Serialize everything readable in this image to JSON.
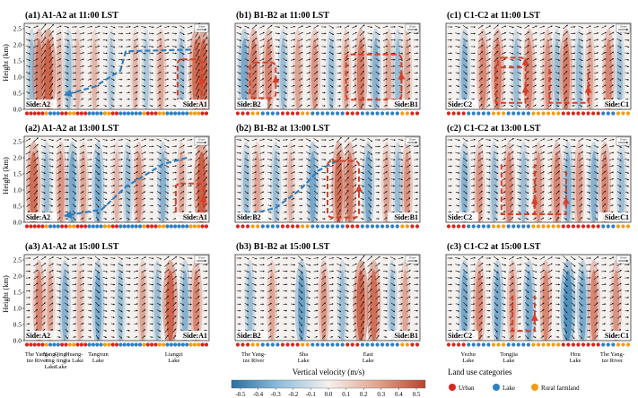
{
  "figure": {
    "y_axis_label": "Height (km)",
    "colorbar_title": "Vertical velocity (m/s)",
    "colorbar_ticks": [
      "-0.5",
      "-0.4",
      "-0.3",
      "-0.2",
      "-0.1",
      "0.0",
      "0.1",
      "0.2",
      "0.3",
      "0.4",
      "0.5"
    ],
    "legend_title": "Land use categories",
    "legend_items": [
      {
        "label": "Urban",
        "color": "#d7261e"
      },
      {
        "label": "Lake",
        "color": "#2f7fc1"
      },
      {
        "label": "Rural farmland",
        "color": "#f39c12"
      }
    ],
    "colors": {
      "positive": "#c8553a",
      "negative": "#3f86b8",
      "flow_arrow": "#111111",
      "blue_dash": "#2f7fc1",
      "red_dash": "#d6402a"
    }
  },
  "chart_data": [
    {
      "type": "heatmap",
      "title": "(a1) A1-A2 at 11:00 LST",
      "ylim": [
        0,
        2.5
      ],
      "yticks": [
        "0.0",
        "0.5",
        "1.0",
        "1.5",
        "2.0",
        "2.5"
      ],
      "left_side_label": "Side:A2",
      "right_side_label": "Side:A1",
      "ref_vector": "10 m/s",
      "x_categories": [],
      "surface": [
        "u",
        "u",
        "u",
        "u",
        "u",
        "f",
        "l",
        "l",
        "l",
        "u",
        "u",
        "f",
        "f",
        "u",
        "u",
        "u",
        "l",
        "l",
        "l",
        "l",
        "f",
        "f",
        "u",
        "u",
        "l",
        "l",
        "l",
        "l",
        "l",
        "l",
        "f",
        "u",
        "u",
        "u",
        "f",
        "f",
        "l",
        "l",
        "l",
        "l",
        "l",
        "l",
        "f",
        "f",
        "f",
        "u",
        "u"
      ],
      "updrafts": [
        {
          "x": 0.08,
          "w": 0.35
        },
        {
          "x": 0.13,
          "w": 0.45
        },
        {
          "x": 0.19,
          "w": 0.15
        },
        {
          "x": 0.29,
          "w": 0.15
        },
        {
          "x": 0.38,
          "w": 0.15
        },
        {
          "x": 0.6,
          "w": 0.15
        },
        {
          "x": 0.74,
          "w": 0.2
        },
        {
          "x": 0.93,
          "w": 0.4
        },
        {
          "x": 0.97,
          "w": 0.45
        }
      ],
      "downdrafts": [
        {
          "x": 0.04,
          "w": -0.2
        },
        {
          "x": 0.24,
          "w": -0.2
        },
        {
          "x": 0.47,
          "w": -0.15
        },
        {
          "x": 0.66,
          "w": -0.15
        },
        {
          "x": 0.85,
          "w": -0.2
        }
      ],
      "circulations": [
        {
          "color": "blue",
          "path": [
            [
              0.9,
              1.85
            ],
            [
              0.55,
              1.8
            ],
            [
              0.52,
              1.2
            ],
            [
              0.38,
              0.7
            ],
            [
              0.22,
              0.45
            ]
          ]
        },
        {
          "color": "red",
          "loop": [
            0.83,
            1.55,
            0.96,
            0.2
          ]
        }
      ]
    },
    {
      "type": "heatmap",
      "title": "(b1) B1-B2 at 11:00 LST",
      "ylim": [
        0,
        2.5
      ],
      "yticks": [],
      "left_side_label": "Side:B2",
      "right_side_label": "Side:B1",
      "ref_vector": "10 m/s",
      "x_categories": [],
      "surface": [
        "u",
        "u",
        "u",
        "f",
        "f",
        "l",
        "l",
        "l",
        "l",
        "u",
        "u",
        "u",
        "u",
        "f",
        "f",
        "l",
        "l",
        "l",
        "l",
        "l",
        "l",
        "l",
        "u",
        "u",
        "u",
        "l",
        "l",
        "l",
        "l",
        "l",
        "l",
        "l",
        "l",
        "f",
        "f",
        "u",
        "u"
      ],
      "updrafts": [
        {
          "x": 0.1,
          "w": 0.35
        },
        {
          "x": 0.18,
          "w": 0.3
        },
        {
          "x": 0.34,
          "w": 0.2
        },
        {
          "x": 0.43,
          "w": 0.25
        },
        {
          "x": 0.6,
          "w": 0.2
        },
        {
          "x": 0.68,
          "w": 0.35
        },
        {
          "x": 0.83,
          "w": 0.2
        },
        {
          "x": 0.93,
          "w": 0.2
        }
      ],
      "downdrafts": [
        {
          "x": 0.05,
          "w": -0.3
        },
        {
          "x": 0.26,
          "w": -0.2
        },
        {
          "x": 0.52,
          "w": -0.2
        },
        {
          "x": 0.76,
          "w": -0.25
        },
        {
          "x": 0.88,
          "w": -0.2
        }
      ],
      "circulations": [
        {
          "color": "red",
          "loop": [
            0.08,
            1.45,
            0.22,
            0.35
          ]
        },
        {
          "color": "red",
          "loop": [
            0.6,
            1.7,
            0.9,
            0.3
          ]
        }
      ]
    },
    {
      "type": "heatmap",
      "title": "(c1) C1-C2 at 11:00 LST",
      "ylim": [
        0,
        2.5
      ],
      "yticks": [],
      "left_side_label": "Side:C2",
      "right_side_label": "Side:C1",
      "ref_vector": "10 m/s",
      "x_categories": [],
      "surface": [
        "u",
        "u",
        "u",
        "u",
        "l",
        "l",
        "l",
        "l",
        "l",
        "f",
        "f",
        "f",
        "l",
        "l",
        "l",
        "l",
        "l",
        "f",
        "f",
        "f",
        "f",
        "f",
        "f",
        "u",
        "u",
        "u",
        "u",
        "u",
        "u",
        "u",
        "u",
        "l",
        "l",
        "l",
        "f",
        "f",
        "f"
      ],
      "updrafts": [
        {
          "x": 0.2,
          "w": 0.3
        },
        {
          "x": 0.28,
          "w": 0.35
        },
        {
          "x": 0.45,
          "w": 0.3
        },
        {
          "x": 0.55,
          "w": 0.25
        },
        {
          "x": 0.65,
          "w": 0.35
        },
        {
          "x": 0.78,
          "w": 0.2
        },
        {
          "x": 0.88,
          "w": 0.3
        }
      ],
      "downdrafts": [
        {
          "x": 0.1,
          "w": -0.25
        },
        {
          "x": 0.38,
          "w": -0.2
        },
        {
          "x": 0.6,
          "w": -0.2
        },
        {
          "x": 0.72,
          "w": -0.2
        },
        {
          "x": 0.94,
          "w": -0.2
        }
      ],
      "circulations": [
        {
          "color": "red",
          "u": [
            0.27,
            0.43,
            1.3,
            0.2
          ]
        },
        {
          "color": "red",
          "u": [
            0.56,
            0.77,
            1.25,
            0.2
          ]
        },
        {
          "color": "red",
          "loop": [
            0.28,
            1.6,
            0.43,
            1.3
          ]
        }
      ]
    },
    {
      "type": "heatmap",
      "title": "(a2) A1-A2 at 13:00 LST",
      "ylim": [
        0,
        2.5
      ],
      "yticks": [
        "0.0",
        "0.5",
        "1.0",
        "1.5",
        "2.0",
        "2.5"
      ],
      "left_side_label": "Side:A2",
      "right_side_label": "Side:A1",
      "ref_vector": "10 m/s",
      "x_categories": [],
      "surface": [
        "u",
        "u",
        "u",
        "u",
        "u",
        "f",
        "l",
        "l",
        "l",
        "u",
        "u",
        "f",
        "f",
        "u",
        "u",
        "u",
        "l",
        "l",
        "l",
        "l",
        "f",
        "f",
        "u",
        "u",
        "l",
        "l",
        "l",
        "l",
        "l",
        "l",
        "f",
        "u",
        "u",
        "u",
        "f",
        "f",
        "l",
        "l",
        "l",
        "l",
        "l",
        "l",
        "f",
        "f",
        "f",
        "u",
        "u"
      ],
      "updrafts": [
        {
          "x": 0.05,
          "w": 0.4
        },
        {
          "x": 0.2,
          "w": 0.25
        },
        {
          "x": 0.32,
          "w": 0.2
        },
        {
          "x": 0.5,
          "w": 0.15
        },
        {
          "x": 0.62,
          "w": 0.25
        },
        {
          "x": 0.85,
          "w": 0.2
        },
        {
          "x": 0.96,
          "w": 0.5
        }
      ],
      "downdrafts": [
        {
          "x": 0.12,
          "w": -0.2
        },
        {
          "x": 0.26,
          "w": -0.3
        },
        {
          "x": 0.4,
          "w": -0.3
        },
        {
          "x": 0.56,
          "w": -0.2
        },
        {
          "x": 0.75,
          "w": -0.25
        }
      ],
      "circulations": [
        {
          "color": "blue",
          "path": [
            [
              0.88,
              2.0
            ],
            [
              0.75,
              1.8
            ],
            [
              0.55,
              1.1
            ],
            [
              0.42,
              0.4
            ],
            [
              0.22,
              0.2
            ]
          ]
        },
        {
          "color": "red",
          "loop": [
            0.82,
            1.2,
            0.97,
            0.2
          ]
        }
      ]
    },
    {
      "type": "heatmap",
      "title": "(b2) B1-B2 at 13:00 LST",
      "ylim": [
        0,
        2.5
      ],
      "yticks": [],
      "left_side_label": "Side:B2",
      "right_side_label": "Side:B1",
      "ref_vector": "10 m/s",
      "x_categories": [],
      "surface": [
        "u",
        "u",
        "u",
        "f",
        "f",
        "l",
        "l",
        "l",
        "l",
        "u",
        "u",
        "u",
        "u",
        "f",
        "f",
        "l",
        "l",
        "l",
        "l",
        "l",
        "l",
        "l",
        "u",
        "u",
        "u",
        "l",
        "l",
        "l",
        "l",
        "l",
        "l",
        "l",
        "l",
        "f",
        "f",
        "u",
        "u"
      ],
      "updrafts": [
        {
          "x": 0.12,
          "w": 0.2
        },
        {
          "x": 0.3,
          "w": 0.15
        },
        {
          "x": 0.56,
          "w": 0.4
        },
        {
          "x": 0.62,
          "w": 0.35
        },
        {
          "x": 0.82,
          "w": 0.2
        },
        {
          "x": 0.93,
          "w": 0.25
        }
      ],
      "downdrafts": [
        {
          "x": 0.06,
          "w": -0.2
        },
        {
          "x": 0.22,
          "w": -0.2
        },
        {
          "x": 0.42,
          "w": -0.3
        },
        {
          "x": 0.72,
          "w": -0.3
        },
        {
          "x": 0.88,
          "w": -0.2
        }
      ],
      "circulations": [
        {
          "color": "blue",
          "path": [
            [
              0.55,
              1.9
            ],
            [
              0.45,
              1.6
            ],
            [
              0.35,
              1.0
            ],
            [
              0.22,
              0.45
            ],
            [
              0.05,
              0.2
            ]
          ]
        },
        {
          "color": "red",
          "loop": [
            0.5,
            1.9,
            0.67,
            0.15
          ]
        }
      ]
    },
    {
      "type": "heatmap",
      "title": "(c2) C1-C2 at 13:00 LST",
      "ylim": [
        0,
        2.5
      ],
      "yticks": [],
      "left_side_label": "Side:C2",
      "right_side_label": "Side:C1",
      "ref_vector": "10 m/s",
      "x_categories": [],
      "surface": [
        "u",
        "u",
        "u",
        "u",
        "l",
        "l",
        "l",
        "l",
        "l",
        "f",
        "f",
        "f",
        "l",
        "l",
        "l",
        "l",
        "l",
        "f",
        "f",
        "f",
        "f",
        "f",
        "f",
        "u",
        "u",
        "u",
        "u",
        "u",
        "u",
        "u",
        "u",
        "l",
        "l",
        "l",
        "f",
        "f",
        "f"
      ],
      "updrafts": [
        {
          "x": 0.18,
          "w": 0.25
        },
        {
          "x": 0.34,
          "w": 0.3
        },
        {
          "x": 0.5,
          "w": 0.25
        },
        {
          "x": 0.6,
          "w": 0.3
        },
        {
          "x": 0.72,
          "w": 0.25
        },
        {
          "x": 0.86,
          "w": 0.3
        }
      ],
      "downdrafts": [
        {
          "x": 0.1,
          "w": -0.25
        },
        {
          "x": 0.26,
          "w": -0.2
        },
        {
          "x": 0.42,
          "w": -0.2
        },
        {
          "x": 0.66,
          "w": -0.25
        },
        {
          "x": 0.8,
          "w": -0.25
        },
        {
          "x": 0.95,
          "w": -0.2
        }
      ],
      "circulations": [
        {
          "color": "red",
          "u": [
            0.3,
            0.48,
            1.8,
            0.25
          ]
        },
        {
          "color": "red",
          "u": [
            0.48,
            0.65,
            1.6,
            0.25
          ]
        }
      ]
    },
    {
      "type": "heatmap",
      "title": "(a3) A1-A2 at 15:00 LST",
      "ylim": [
        0,
        2.5
      ],
      "yticks": [
        "0.0",
        "0.5",
        "1.0",
        "1.5",
        "2.0",
        "2.5"
      ],
      "left_side_label": "Side:A2",
      "right_side_label": "Side:A1",
      "ref_vector": "10 m/s",
      "x_categories": [
        {
          "label": "The Yang-\ntze River",
          "x": 0.07
        },
        {
          "label": "Yang-\nting\nLake",
          "x": 0.14
        },
        {
          "label": "Qing-\nting\nLake",
          "x": 0.2
        },
        {
          "label": "Huang-\njia Lake",
          "x": 0.27
        },
        {
          "label": "Tangxun\nLake",
          "x": 0.4
        },
        {
          "label": "Liangzi\nLake",
          "x": 0.81
        }
      ],
      "surface": [
        "u",
        "u",
        "u",
        "u",
        "u",
        "f",
        "l",
        "l",
        "l",
        "u",
        "u",
        "f",
        "f",
        "u",
        "u",
        "u",
        "l",
        "l",
        "l",
        "l",
        "f",
        "f",
        "u",
        "u",
        "l",
        "l",
        "l",
        "l",
        "l",
        "l",
        "f",
        "u",
        "u",
        "u",
        "f",
        "f",
        "l",
        "l",
        "l",
        "l",
        "l",
        "l",
        "f",
        "f",
        "f",
        "u",
        "u"
      ],
      "updrafts": [
        {
          "x": 0.08,
          "w": 0.3
        },
        {
          "x": 0.14,
          "w": 0.2
        },
        {
          "x": 0.3,
          "w": 0.15
        },
        {
          "x": 0.64,
          "w": 0.2
        },
        {
          "x": 0.79,
          "w": 0.45
        },
        {
          "x": 0.93,
          "w": 0.3
        }
      ],
      "downdrafts": [
        {
          "x": 0.22,
          "w": -0.25
        },
        {
          "x": 0.4,
          "w": -0.3
        },
        {
          "x": 0.52,
          "w": -0.2
        },
        {
          "x": 0.72,
          "w": -0.2
        },
        {
          "x": 0.87,
          "w": -0.25
        }
      ],
      "circulations": []
    },
    {
      "type": "heatmap",
      "title": "(b3) B1-B2 at 15:00 LST",
      "ylim": [
        0,
        2.5
      ],
      "yticks": [],
      "left_side_label": "Side:B2",
      "right_side_label": "Side:B1",
      "ref_vector": "10 m/s",
      "x_categories": [
        {
          "label": "The Yang-\ntze River",
          "x": 0.1
        },
        {
          "label": "Sha\nLake",
          "x": 0.37
        },
        {
          "label": "East\nLake",
          "x": 0.72
        }
      ],
      "surface": [
        "u",
        "u",
        "u",
        "f",
        "f",
        "l",
        "l",
        "l",
        "l",
        "u",
        "u",
        "u",
        "u",
        "f",
        "f",
        "l",
        "l",
        "l",
        "l",
        "l",
        "l",
        "l",
        "u",
        "u",
        "u",
        "l",
        "l",
        "l",
        "l",
        "l",
        "l",
        "l",
        "l",
        "f",
        "f",
        "u",
        "u"
      ],
      "updrafts": [
        {
          "x": 0.2,
          "w": 0.2
        },
        {
          "x": 0.48,
          "w": 0.25
        },
        {
          "x": 0.68,
          "w": 0.45
        },
        {
          "x": 0.75,
          "w": 0.4
        },
        {
          "x": 0.92,
          "w": 0.2
        }
      ],
      "downdrafts": [
        {
          "x": 0.08,
          "w": -0.2
        },
        {
          "x": 0.36,
          "w": -0.35
        },
        {
          "x": 0.58,
          "w": -0.2
        },
        {
          "x": 0.85,
          "w": -0.2
        }
      ],
      "circulations": []
    },
    {
      "type": "heatmap",
      "title": "(c3) C1-C2 at 15:00 LST",
      "ylim": [
        0,
        2.5
      ],
      "yticks": [],
      "left_side_label": "Side:C2",
      "right_side_label": "Side:C1",
      "ref_vector": "10 m/s",
      "x_categories": [
        {
          "label": "Yezhu\nLake",
          "x": 0.12
        },
        {
          "label": "Tongjia\nLake",
          "x": 0.34
        },
        {
          "label": "Hou\nLake",
          "x": 0.7
        },
        {
          "label": "The Yang-\ntze River",
          "x": 0.9
        }
      ],
      "surface": [
        "u",
        "u",
        "u",
        "u",
        "l",
        "l",
        "l",
        "l",
        "l",
        "f",
        "f",
        "f",
        "l",
        "l",
        "l",
        "l",
        "l",
        "f",
        "f",
        "f",
        "f",
        "f",
        "f",
        "u",
        "u",
        "u",
        "u",
        "u",
        "u",
        "u",
        "u",
        "l",
        "l",
        "l",
        "f",
        "f",
        "f"
      ],
      "updrafts": [
        {
          "x": 0.18,
          "w": 0.3
        },
        {
          "x": 0.36,
          "w": 0.25
        },
        {
          "x": 0.54,
          "w": 0.3
        },
        {
          "x": 0.8,
          "w": 0.3
        },
        {
          "x": 0.92,
          "w": 0.25
        }
      ],
      "downdrafts": [
        {
          "x": 0.1,
          "w": -0.3
        },
        {
          "x": 0.28,
          "w": -0.3
        },
        {
          "x": 0.45,
          "w": -0.3
        },
        {
          "x": 0.66,
          "w": -0.45
        },
        {
          "x": 0.74,
          "w": -0.3
        }
      ],
      "circulations": [
        {
          "color": "red",
          "u": [
            0.36,
            0.48,
            1.4,
            0.3
          ]
        }
      ]
    }
  ]
}
